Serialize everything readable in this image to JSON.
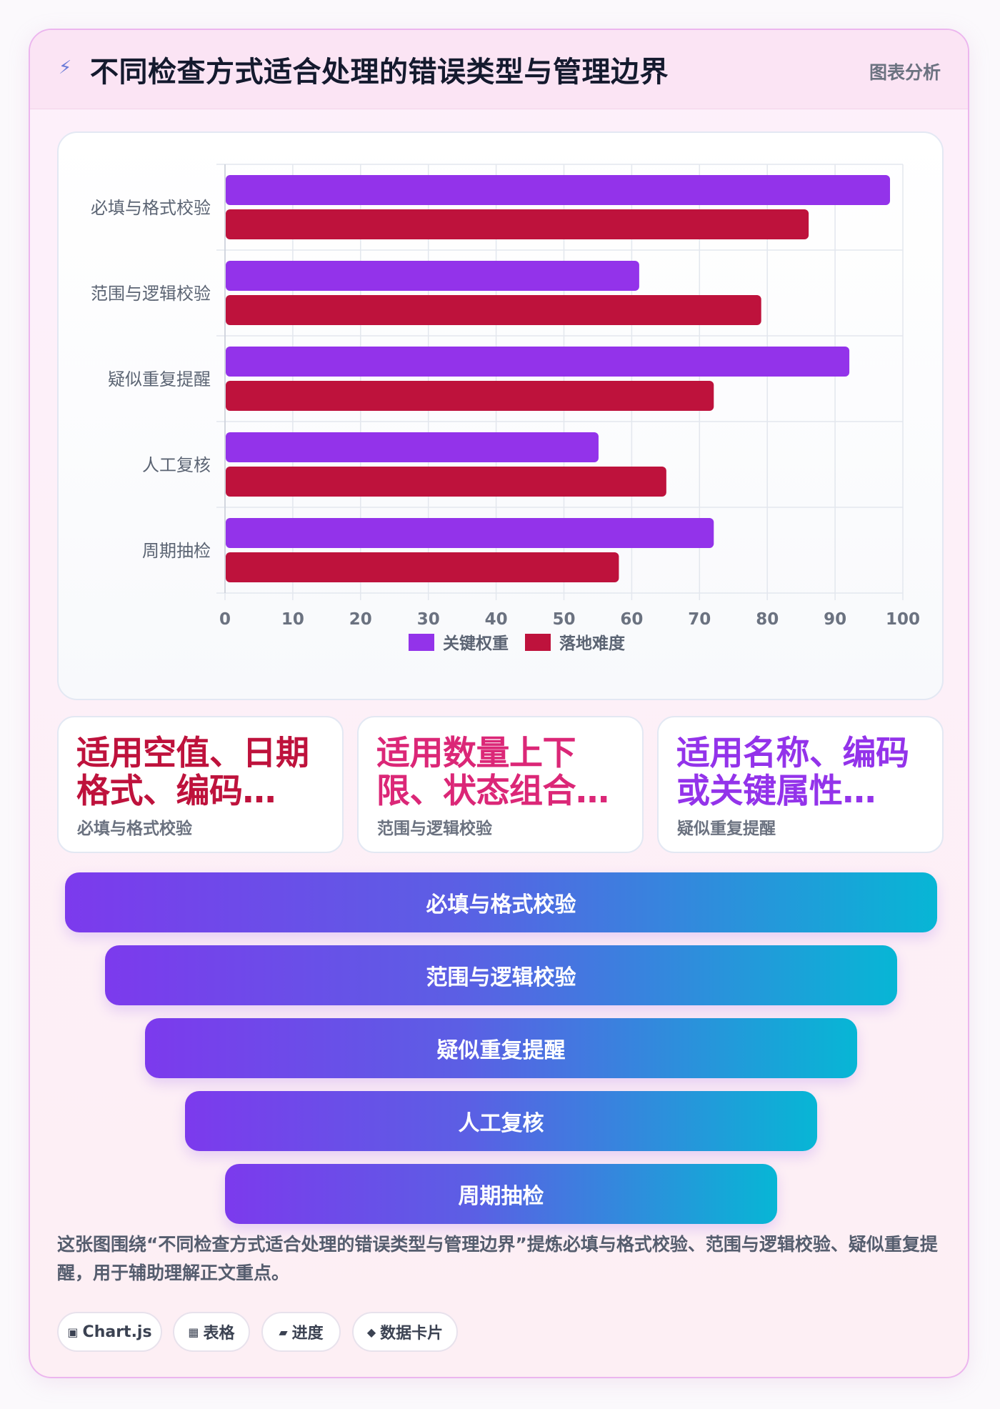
{
  "header": {
    "title": "不同检查方式适合处理的错误类型与管理边界",
    "tag": "图表分析",
    "icon": "lightning-icon"
  },
  "chart_data": {
    "type": "bar",
    "orientation": "horizontal",
    "categories": [
      "必填与格式校验",
      "范围与逻辑校验",
      "疑似重复提醒",
      "人工复核",
      "周期抽检"
    ],
    "series": [
      {
        "name": "关键权重",
        "color": "#9333ea",
        "values": [
          98,
          61,
          92,
          55,
          72
        ]
      },
      {
        "name": "落地难度",
        "color": "#be123c",
        "values": [
          86,
          79,
          72,
          65,
          58
        ]
      }
    ],
    "xlim": [
      0,
      100
    ],
    "xticks": [
      "0",
      "10",
      "20",
      "30",
      "40",
      "50",
      "60",
      "70",
      "80",
      "90",
      "100"
    ],
    "grid": true,
    "legend": "bottom"
  },
  "stats": [
    {
      "value": "适用空值、日期格式、编码…",
      "label": "必填与格式校验",
      "color": "#be123c"
    },
    {
      "value": "适用数量上下限、状态组合…",
      "label": "范围与逻辑校验",
      "color": "#db2777"
    },
    {
      "value": "适用名称、编码或关键属性…",
      "label": "疑似重复提醒",
      "color": "#9333ea"
    }
  ],
  "funnel": [
    "必填与格式校验",
    "范围与逻辑校验",
    "疑似重复提醒",
    "人工复核",
    "周期抽检"
  ],
  "summary": "这张图围绕“不同检查方式适合处理的错误类型与管理边界”提炼必填与格式校验、范围与逻辑校验、疑似重复提醒，用于辅助理解正文重点。",
  "chips": [
    {
      "icon": "▣",
      "label": "Chart.js"
    },
    {
      "icon": "▦",
      "label": "表格"
    },
    {
      "icon": "▰",
      "label": "进度"
    },
    {
      "icon": "◆",
      "label": "数据卡片"
    }
  ]
}
